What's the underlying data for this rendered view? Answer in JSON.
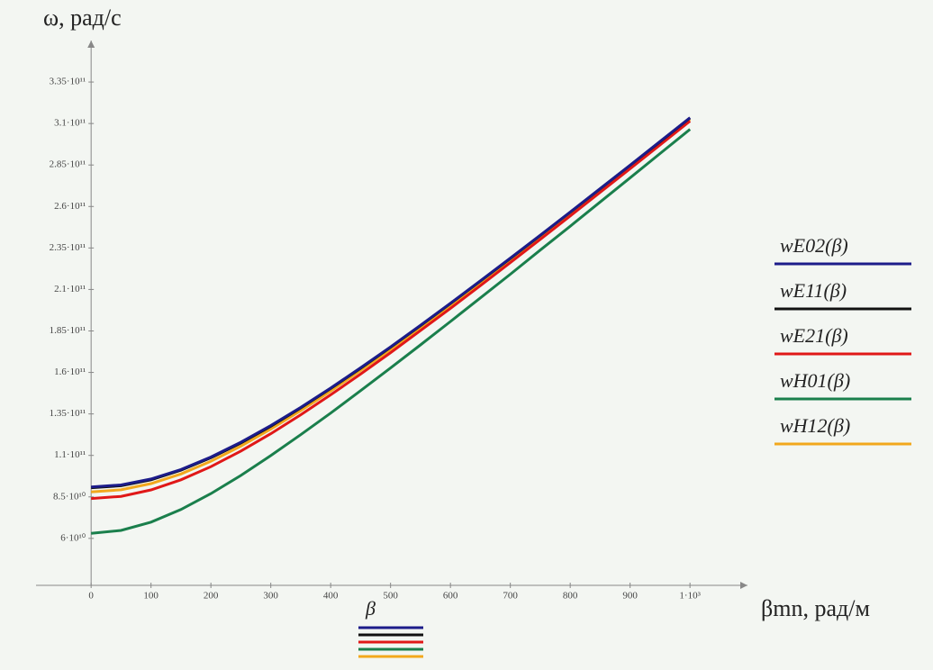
{
  "chart_data": {
    "type": "line",
    "y_label": "ω, рад/с",
    "x_label": "βmn, рад/м",
    "x_variable": "β",
    "x": [
      0,
      50,
      100,
      150,
      200,
      250,
      300,
      350,
      400,
      450,
      500,
      550,
      600,
      650,
      700,
      750,
      800,
      850,
      900,
      950,
      1000
    ],
    "series": [
      {
        "name": "wE02(β)",
        "color": "#1c1c8a",
        "values": [
          91000000000.0,
          92200000000.0,
          95800000000.0,
          101500000000.0,
          109000000000.0,
          117900000000.0,
          128000000000.0,
          138900000000.0,
          150600000000.0,
          162800000000.0,
          175400000000.0,
          188400000000.0,
          201700000000.0,
          215200000000.0,
          228900000000.0,
          242700000000.0,
          256700000000.0,
          270800000000.0,
          284900000000.0,
          299200000000.0,
          313500000000.0
        ]
      },
      {
        "name": "wE11(β)",
        "color": "#111111",
        "values": [
          90500000000.0,
          91700000000.0,
          95300000000.0,
          101100000000.0,
          108600000000.0,
          117500000000.0,
          127600000000.0,
          138600000000.0,
          150300000000.0,
          162500000000.0,
          175200000000.0,
          188200000000.0,
          201500000000.0,
          215000000000.0,
          228700000000.0,
          242500000000.0,
          256500000000.0,
          270600000000.0,
          284800000000.0,
          299000000000.0,
          313400000000.0
        ]
      },
      {
        "name": "wE21(β)",
        "color": "#e01818",
        "values": [
          84000000000.0,
          85300000000.0,
          89200000000.0,
          95300000000.0,
          103200000000.0,
          112600000000.0,
          123100000000.0,
          134500000000.0,
          146500000000.0,
          159000000000.0,
          171900000000.0,
          185200000000.0,
          198600000000.0,
          212300000000.0,
          226200000000.0,
          240200000000.0,
          254300000000.0,
          268500000000.0,
          282800000000.0,
          297100000000.0,
          311500000000.0
        ]
      },
      {
        "name": "wH01(β)",
        "color": "#1a7f4c",
        "values": [
          63000000000.0,
          64800000000.0,
          69800000000.0,
          77400000000.0,
          87000000000.0,
          97900000000.0,
          109900000000.0,
          122500000000.0,
          135500000000.0,
          149000000000.0,
          162700000000.0,
          176600000000.0,
          190700000000.0,
          204900000000.0,
          219200000000.0,
          233700000000.0,
          248100000000.0,
          262700000000.0,
          277300000000.0,
          291900000000.0,
          306500000000.0
        ]
      },
      {
        "name": "wH12(β)",
        "color": "#f2a81d",
        "values": [
          88000000000.0,
          89300000000.0,
          93000000000.0,
          98800000000.0,
          106500000000.0,
          115600000000.0,
          125900000000.0,
          137000000000.0,
          148800000000.0,
          161200000000.0,
          173900000000.0,
          187000000000.0,
          200400000000.0,
          213900000000.0,
          227700000000.0,
          241600000000.0,
          255600000000.0,
          269800000000.0,
          284000000000.0,
          298300000000.0,
          312600000000.0
        ]
      }
    ],
    "xlim": [
      -92,
      1096
    ],
    "ylim": [
      31700000000.0,
      360000000000.0
    ],
    "xticks": [
      0,
      100,
      200,
      300,
      400,
      500,
      600,
      700,
      800,
      900,
      {
        "value": 1000,
        "label": "1·10³"
      }
    ],
    "yticks": [
      {
        "value": 60000000000.0,
        "label": "6·10¹⁰"
      },
      {
        "value": 85000000000.0,
        "label": "8.5·10¹⁰"
      },
      {
        "value": 110000000000.0,
        "label": "1.1·10¹¹"
      },
      {
        "value": 135000000000.0,
        "label": "1.35·10¹¹"
      },
      {
        "value": 160000000000.0,
        "label": "1.6·10¹¹"
      },
      {
        "value": 185000000000.0,
        "label": "1.85·10¹¹"
      },
      {
        "value": 210000000000.0,
        "label": "2.1·10¹¹"
      },
      {
        "value": 235000000000.0,
        "label": "2.35·10¹¹"
      },
      {
        "value": 260000000000.0,
        "label": "2.6·10¹¹"
      },
      {
        "value": 285000000000.0,
        "label": "2.85·10¹¹"
      },
      {
        "value": 310000000000.0,
        "label": "3.1·10¹¹"
      },
      {
        "value": 335000000000.0,
        "label": "3.35·10¹¹"
      }
    ],
    "legend": "right",
    "grid": false
  }
}
